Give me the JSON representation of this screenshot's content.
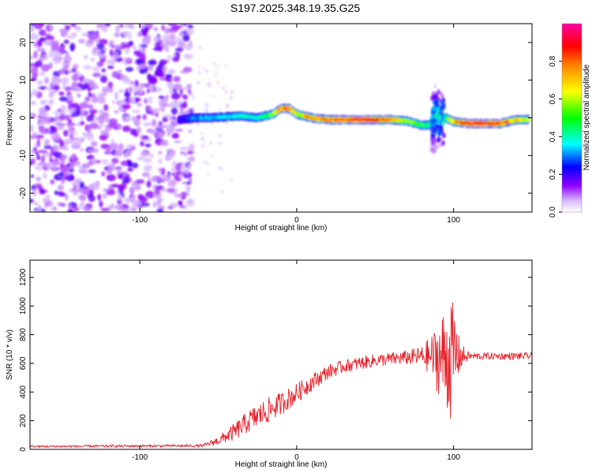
{
  "title": "S197.2025.348.19.35.G25",
  "chart_data": [
    {
      "type": "heatmap",
      "name": "spectrogram",
      "xlabel": "Height of straight line (km)",
      "ylabel": "Frequency (Hz)",
      "xlim": [
        -170,
        150
      ],
      "ylim": [
        -25,
        25
      ],
      "xticks": [
        -100,
        0,
        100
      ],
      "yticks": [
        -20,
        -10,
        0,
        10,
        20
      ],
      "colorbar": {
        "label": "Normalized spectral amplitude",
        "range": [
          0,
          1
        ],
        "ticks": [
          0.0,
          0.2,
          0.4,
          0.6,
          0.8
        ],
        "colors": [
          "#ffffff",
          "#9000ff",
          "#0000ff",
          "#00ffff",
          "#00ff00",
          "#ffff00",
          "#ff8000",
          "#ff0000",
          "#ff00a0"
        ]
      },
      "noise_region_end_km": -70,
      "ridge": {
        "description": "Doppler frequency ridge of the signal",
        "x": [
          -75,
          -65,
          -55,
          -45,
          -35,
          -25,
          -15,
          -10,
          -5,
          0,
          10,
          20,
          30,
          40,
          50,
          60,
          70,
          80,
          85,
          90,
          95,
          100,
          110,
          120,
          130,
          140,
          148
        ],
        "freq_hz": [
          -0.5,
          0.0,
          0.0,
          0.3,
          0.5,
          0.0,
          1.0,
          2.5,
          2.5,
          1.0,
          0.0,
          -0.5,
          -0.5,
          -0.5,
          -0.5,
          -0.5,
          -0.8,
          -2.0,
          -1.8,
          0.5,
          0.0,
          -1.0,
          -1.5,
          -1.5,
          -1.5,
          -0.5,
          -0.5
        ],
        "amplitude": [
          0.2,
          0.3,
          0.35,
          0.35,
          0.4,
          0.4,
          0.55,
          0.8,
          0.85,
          0.6,
          0.75,
          0.8,
          0.85,
          0.9,
          0.85,
          0.8,
          0.6,
          0.5,
          0.45,
          0.4,
          0.45,
          0.7,
          0.9,
          0.9,
          0.85,
          0.7,
          0.6
        ]
      },
      "disturbance_x_km": 90
    },
    {
      "type": "line",
      "name": "snr",
      "xlabel": "Height of straight line (km)",
      "ylabel": "SNR (10 * v/v)",
      "xlim": [
        -170,
        150
      ],
      "ylim": [
        0,
        1320
      ],
      "xticks": [
        -100,
        0,
        100
      ],
      "yticks": [
        0,
        200,
        400,
        600,
        800,
        1000,
        1200
      ],
      "color": "#e8202a",
      "envelope": {
        "x": [
          -170,
          -60,
          -50,
          -40,
          -30,
          -20,
          -10,
          0,
          10,
          20,
          30,
          40,
          50,
          60,
          70,
          80,
          86,
          90,
          94,
          96,
          98,
          100,
          102,
          104,
          110,
          150
        ],
        "mean": [
          20,
          25,
          60,
          120,
          200,
          260,
          320,
          390,
          470,
          540,
          580,
          600,
          620,
          630,
          640,
          650,
          650,
          640,
          640,
          640,
          650,
          650,
          650,
          650,
          650,
          650
        ],
        "jitter": [
          8,
          10,
          30,
          60,
          80,
          90,
          80,
          70,
          60,
          50,
          45,
          45,
          45,
          45,
          50,
          70,
          150,
          250,
          350,
          400,
          450,
          350,
          250,
          100,
          25,
          25
        ]
      }
    }
  ]
}
